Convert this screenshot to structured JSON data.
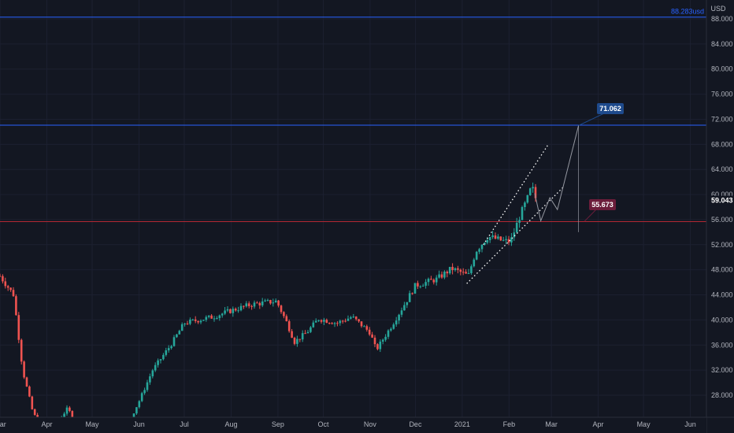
{
  "chart_data": {
    "type": "candlestick",
    "currency_label": "USD",
    "ylim": [
      24,
      90
    ],
    "y_ticks": [
      28,
      32,
      36,
      40,
      44,
      48,
      52,
      56,
      60,
      64,
      68,
      72,
      76,
      80,
      84,
      88
    ],
    "y_tick_labels": [
      "28.000",
      "32.000",
      "36.000",
      "40.000",
      "44.000",
      "48.000",
      "52.000",
      "56.000",
      "60.000",
      "64.000",
      "68.000",
      "72.000",
      "76.000",
      "80.000",
      "84.000",
      "88.000"
    ],
    "x_tick_labels": [
      "Mar",
      "Apr",
      "May",
      "Jun",
      "Jul",
      "Aug",
      "Sep",
      "Oct",
      "Nov",
      "Dec",
      "2021",
      "Feb",
      "Mar",
      "Apr",
      "May",
      "Jun"
    ],
    "x_tick_dates": [
      "2020-03-01",
      "2020-04-01",
      "2020-05-01",
      "2020-06-01",
      "2020-07-01",
      "2020-08-01",
      "2020-09-01",
      "2020-10-01",
      "2020-11-01",
      "2020-12-01",
      "2021-01-01",
      "2021-02-01",
      "2021-03-01",
      "2021-04-01",
      "2021-05-01",
      "2021-06-01"
    ],
    "levels": [
      {
        "name": "top",
        "value": 88.283,
        "label": "88.283usd",
        "color": "#2962ff"
      },
      {
        "name": "resistance",
        "value": 71.062,
        "label": "71.062",
        "color": "#2962ff"
      },
      {
        "name": "support",
        "value": 55.673,
        "label": "55.673",
        "color": "#b22833"
      }
    ],
    "last_price": {
      "value": 59.043,
      "label": "59.043"
    },
    "trend_channel": {
      "upper": {
        "start": [
          "2021-01-15",
          52
        ],
        "end": [
          "2021-02-27",
          68
        ]
      },
      "lower": {
        "start": [
          "2021-01-04",
          45.8
        ],
        "end": [
          "2021-03-09",
          61.2
        ]
      }
    },
    "projection_path": [
      [
        "2021-02-18",
        60.2
      ],
      [
        "2021-02-22",
        55.8
      ],
      [
        "2021-02-28",
        59.5
      ],
      [
        "2021-03-05",
        57.6
      ],
      [
        "2021-03-19",
        71.0
      ]
    ],
    "price_anchors": [
      [
        "2020-03-01",
        47
      ],
      [
        "2020-03-10",
        44
      ],
      [
        "2020-03-16",
        32
      ],
      [
        "2020-03-23",
        25
      ],
      [
        "2020-04-03",
        22
      ],
      [
        "2020-04-15",
        26
      ],
      [
        "2020-04-20",
        23
      ],
      [
        "2020-05-01",
        19.5
      ],
      [
        "2020-05-20",
        21
      ],
      [
        "2020-06-01",
        27
      ],
      [
        "2020-06-10",
        32
      ],
      [
        "2020-06-22",
        36
      ],
      [
        "2020-07-01",
        39.5
      ],
      [
        "2020-07-20",
        40.5
      ],
      [
        "2020-08-01",
        41.5
      ],
      [
        "2020-08-15",
        42.5
      ],
      [
        "2020-08-31",
        43
      ],
      [
        "2020-09-07",
        39.5
      ],
      [
        "2020-09-12",
        36.5
      ],
      [
        "2020-09-20",
        38
      ],
      [
        "2020-09-28",
        40.2
      ],
      [
        "2020-10-10",
        39.5
      ],
      [
        "2020-10-20",
        40.5
      ],
      [
        "2020-11-01",
        38
      ],
      [
        "2020-11-05",
        35.2
      ],
      [
        "2020-11-15",
        39
      ],
      [
        "2020-11-25",
        43
      ],
      [
        "2020-12-01",
        45.5
      ],
      [
        "2020-12-15",
        46.5
      ],
      [
        "2020-12-25",
        48.2
      ],
      [
        "2021-01-01",
        47.5
      ],
      [
        "2021-01-05",
        47
      ],
      [
        "2021-01-10",
        51
      ],
      [
        "2021-01-18",
        53.3
      ],
      [
        "2021-01-28",
        52.6
      ],
      [
        "2021-02-02",
        52.5
      ],
      [
        "2021-02-08",
        56.5
      ],
      [
        "2021-02-13",
        59.2
      ],
      [
        "2021-02-16",
        61.3
      ],
      [
        "2021-02-19",
        59.1
      ]
    ]
  }
}
